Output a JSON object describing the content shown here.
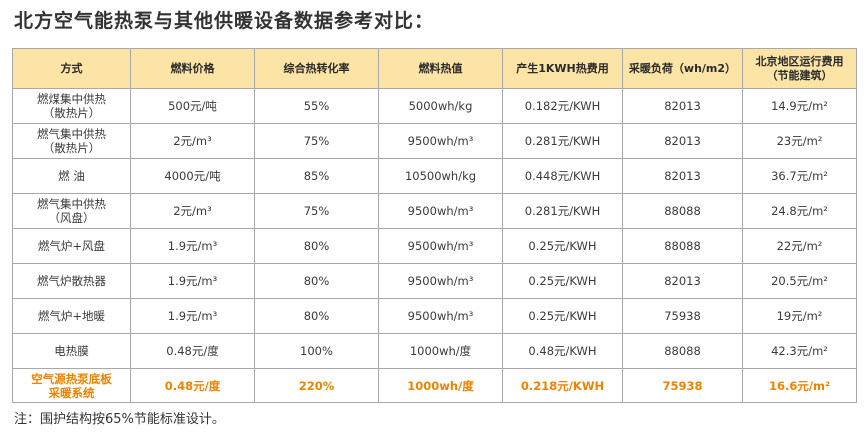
{
  "title": "北方空气能热泵与其他供暖设备数据参考对比：",
  "table": {
    "headers": [
      "方式",
      "燃料价格",
      "综合热转化率",
      "燃料热值",
      "产生1KWH热费用",
      "采暖负荷（wh/m2）",
      "北京地区运行费用\n（节能建筑）"
    ],
    "rows": [
      [
        "燃煤集中供热\n（散热片）",
        "500元/吨",
        "55%",
        "5000wh/kg",
        "0.182元/KWH",
        "82013",
        "14.9元/m²"
      ],
      [
        "燃气集中供热\n（散热片）",
        "2元/m³",
        "75%",
        "9500wh/m³",
        "0.281元/KWH",
        "82013",
        "23元/m²"
      ],
      [
        "燃 油",
        "4000元/吨",
        "85%",
        "10500wh/kg",
        "0.448元/KWH",
        "82013",
        "36.7元/m²"
      ],
      [
        "燃气集中供热\n（风盘）",
        "2元/m³",
        "75%",
        "9500wh/m³",
        "0.281元/KWH",
        "88088",
        "24.8元/m²"
      ],
      [
        "燃气炉+风盘",
        "1.9元/m³",
        "80%",
        "9500wh/m³",
        "0.25元/KWH",
        "88088",
        "22元/m²"
      ],
      [
        "燃气炉散热器",
        "1.9元/m³",
        "80%",
        "9500wh/m³",
        "0.25元/KWH",
        "82013",
        "20.5元/m²"
      ],
      [
        "燃气炉+地暖",
        "1.9元/m³",
        "80%",
        "9500wh/m³",
        "0.25元/KWH",
        "75938",
        "19元/m²"
      ],
      [
        "电热膜",
        "0.48元/度",
        "100%",
        "1000wh/度",
        "0.48元/KWH",
        "88088",
        "42.3元/m²"
      ],
      [
        "空气源热泵底板\n采暖系统",
        "0.48元/度",
        "220%",
        "1000wh/度",
        "0.218元/KWH",
        "75938",
        "16.6元/m²"
      ]
    ]
  },
  "footnote": "注：围护结构按65%节能标准设计。",
  "colors": {
    "header_bg": "#fce3a6",
    "highlight_text": "#f08200",
    "border": "#a8a8a8"
  }
}
